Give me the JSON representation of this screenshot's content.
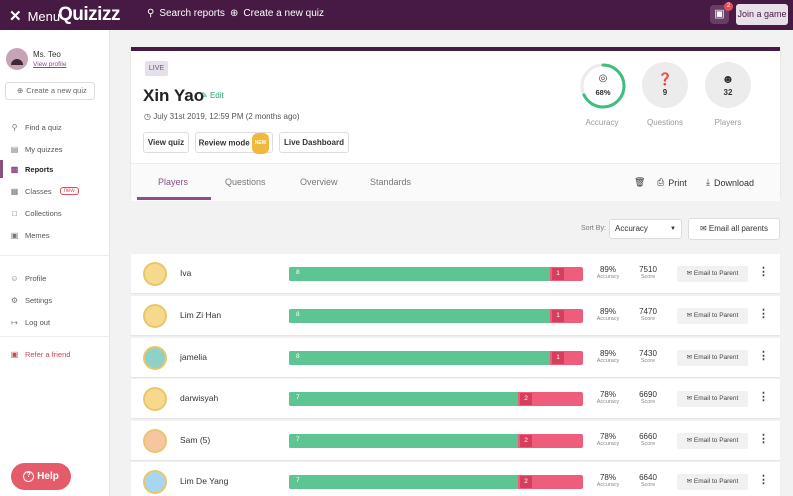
{
  "topbar": {
    "menu_label": "Menu",
    "logo": "Quizizz",
    "search_reports": "Search reports",
    "create_quiz": "Create a new quiz",
    "gift_count": "2",
    "join_game": "Join a game"
  },
  "sidebar": {
    "user_name": "Ms. Teo",
    "view_profile": "View profile",
    "create_quiz": "Create a new quiz",
    "items": [
      {
        "label": "Find a quiz",
        "icon": "search-icon"
      },
      {
        "label": "My quizzes",
        "icon": "document-icon"
      },
      {
        "label": "Reports",
        "icon": "chart-icon"
      },
      {
        "label": "Classes",
        "icon": "classes-icon",
        "tag": "new"
      },
      {
        "label": "Collections",
        "icon": "folder-icon"
      },
      {
        "label": "Memes",
        "icon": "image-icon"
      }
    ],
    "account_items": [
      {
        "label": "Profile",
        "icon": "user-icon"
      },
      {
        "label": "Settings",
        "icon": "gear-icon"
      },
      {
        "label": "Log out",
        "icon": "logout-icon"
      }
    ],
    "refer": "Refer a friend",
    "help": "Help"
  },
  "report": {
    "status": "LIVE",
    "student_name": "Xin Yao",
    "edit": "Edit",
    "date": "July 31st 2019, 12:59 PM (2 months ago)",
    "buttons": {
      "view_quiz": "View quiz",
      "review_mode": "Review mode",
      "review_badge": "NEW",
      "live_dashboard": "Live Dashboard"
    },
    "stats": {
      "accuracy_value": "68%",
      "accuracy_fraction": 0.68,
      "accuracy_label": "Accuracy",
      "questions_value": "9",
      "questions_label": "Questions",
      "players_value": "32",
      "players_label": "Players"
    },
    "tabs": [
      "Players",
      "Questions",
      "Overview",
      "Standards"
    ],
    "actions": {
      "print": "Print",
      "download": "Download"
    }
  },
  "sort": {
    "label": "Sort By:",
    "value": "Accuracy",
    "email_all": "Email all parents"
  },
  "row_labels": {
    "accuracy": "Accuracy",
    "score": "Score",
    "email": "Email to Parent"
  },
  "colors": {
    "brand": "#461a42",
    "correct": "#5cc592",
    "incorrect": "#ee5d7b",
    "accent": "#8a4f86"
  },
  "players": [
    {
      "name": "Iva",
      "correct": 8,
      "incorrect": 1,
      "accuracy": "89%",
      "score": "7510"
    },
    {
      "name": "Lim Zi Han",
      "correct": 8,
      "incorrect": 1,
      "accuracy": "89%",
      "score": "7470"
    },
    {
      "name": "jamelia",
      "correct": 8,
      "incorrect": 1,
      "accuracy": "89%",
      "score": "7430"
    },
    {
      "name": "darwisyah",
      "correct": 7,
      "incorrect": 2,
      "accuracy": "78%",
      "score": "6690"
    },
    {
      "name": "Sam (5)",
      "correct": 7,
      "incorrect": 2,
      "accuracy": "78%",
      "score": "6660"
    },
    {
      "name": "Lim De Yang",
      "correct": 7,
      "incorrect": 2,
      "accuracy": "78%",
      "score": "6640"
    }
  ]
}
